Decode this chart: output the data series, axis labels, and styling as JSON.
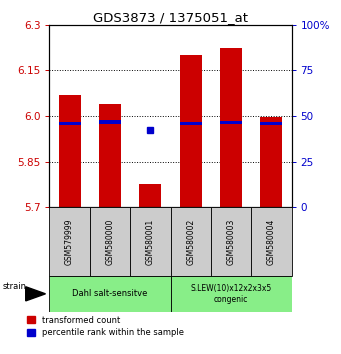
{
  "title": "GDS3873 / 1375051_at",
  "samples": [
    "GSM579999",
    "GSM580000",
    "GSM580001",
    "GSM580002",
    "GSM580003",
    "GSM580004"
  ],
  "red_values": [
    6.07,
    6.04,
    5.775,
    6.2,
    6.225,
    5.998
  ],
  "blue_values": [
    5.975,
    5.98,
    5.955,
    5.975,
    5.978,
    5.975
  ],
  "blue_marker_only": [
    false,
    false,
    true,
    false,
    false,
    false
  ],
  "ylim": [
    5.7,
    6.3
  ],
  "y_ticks": [
    5.7,
    5.85,
    6.0,
    6.15,
    6.3
  ],
  "y2_ticks": [
    0,
    25,
    50,
    75,
    100
  ],
  "y2_labels": [
    "0",
    "25",
    "50",
    "75",
    "100%"
  ],
  "red_color": "#cc0000",
  "blue_color": "#0000cc",
  "bar_width": 0.55,
  "group1_label": "Dahl salt-sensitve",
  "group2_label": "S.LEW(10)x12x2x3x5\ncongenic",
  "group1_indices": [
    0,
    1,
    2
  ],
  "group2_indices": [
    3,
    4,
    5
  ],
  "group_bg_color": "#88ee88",
  "tick_bg_color": "#cccccc",
  "legend_red": "transformed count",
  "legend_blue": "percentile rank within the sample",
  "strain_label": "strain",
  "ylabel_fontsize": 7.5,
  "title_fontsize": 9.5
}
